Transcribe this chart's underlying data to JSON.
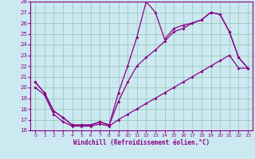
{
  "xlabel": "Windchill (Refroidissement éolien,°C)",
  "bg_color": "#cce8f0",
  "line_color": "#880088",
  "grid_color": "#99ccbb",
  "xlim": [
    -0.5,
    23.5
  ],
  "ylim": [
    16,
    28
  ],
  "xticks": [
    0,
    1,
    2,
    3,
    4,
    5,
    6,
    7,
    8,
    9,
    10,
    11,
    12,
    13,
    14,
    15,
    16,
    17,
    18,
    19,
    20,
    21,
    22,
    23
  ],
  "yticks": [
    16,
    17,
    18,
    19,
    20,
    21,
    22,
    23,
    24,
    25,
    26,
    27,
    28
  ],
  "line_spike_x": [
    0,
    1,
    2,
    3,
    4,
    5,
    6,
    7,
    8,
    9,
    10,
    11,
    12,
    13,
    14,
    15,
    16,
    17,
    18,
    19,
    20,
    21,
    22,
    23
  ],
  "line_spike_y": [
    20.5,
    19.5,
    17.8,
    17.2,
    16.5,
    16.5,
    16.5,
    16.8,
    16.5,
    19.5,
    22.0,
    24.7,
    28.0,
    27.0,
    24.5,
    25.5,
    25.8,
    26.0,
    26.3,
    27.0,
    26.8,
    25.2,
    22.8,
    21.8
  ],
  "line_upper_x": [
    0,
    1,
    2,
    3,
    4,
    5,
    6,
    7,
    8,
    9,
    10,
    11,
    12,
    13,
    14,
    15,
    16,
    17,
    18,
    19,
    20,
    21,
    22,
    23
  ],
  "line_upper_y": [
    20.5,
    19.5,
    17.8,
    17.2,
    16.5,
    16.5,
    16.5,
    16.8,
    16.5,
    18.7,
    20.5,
    22.0,
    22.8,
    23.5,
    24.3,
    25.2,
    25.5,
    26.0,
    26.3,
    27.0,
    26.8,
    25.2,
    22.8,
    21.8
  ],
  "line_diag_x": [
    0,
    1,
    2,
    3,
    4,
    5,
    6,
    7,
    8,
    9,
    10,
    11,
    12,
    13,
    14,
    15,
    16,
    17,
    18,
    19,
    20,
    21,
    22,
    23
  ],
  "line_diag_y": [
    20.0,
    19.3,
    17.5,
    16.8,
    16.4,
    16.4,
    16.4,
    16.6,
    16.4,
    17.0,
    17.5,
    18.0,
    18.5,
    19.0,
    19.5,
    20.0,
    20.5,
    21.0,
    21.5,
    22.0,
    22.5,
    23.0,
    21.8,
    21.8
  ]
}
